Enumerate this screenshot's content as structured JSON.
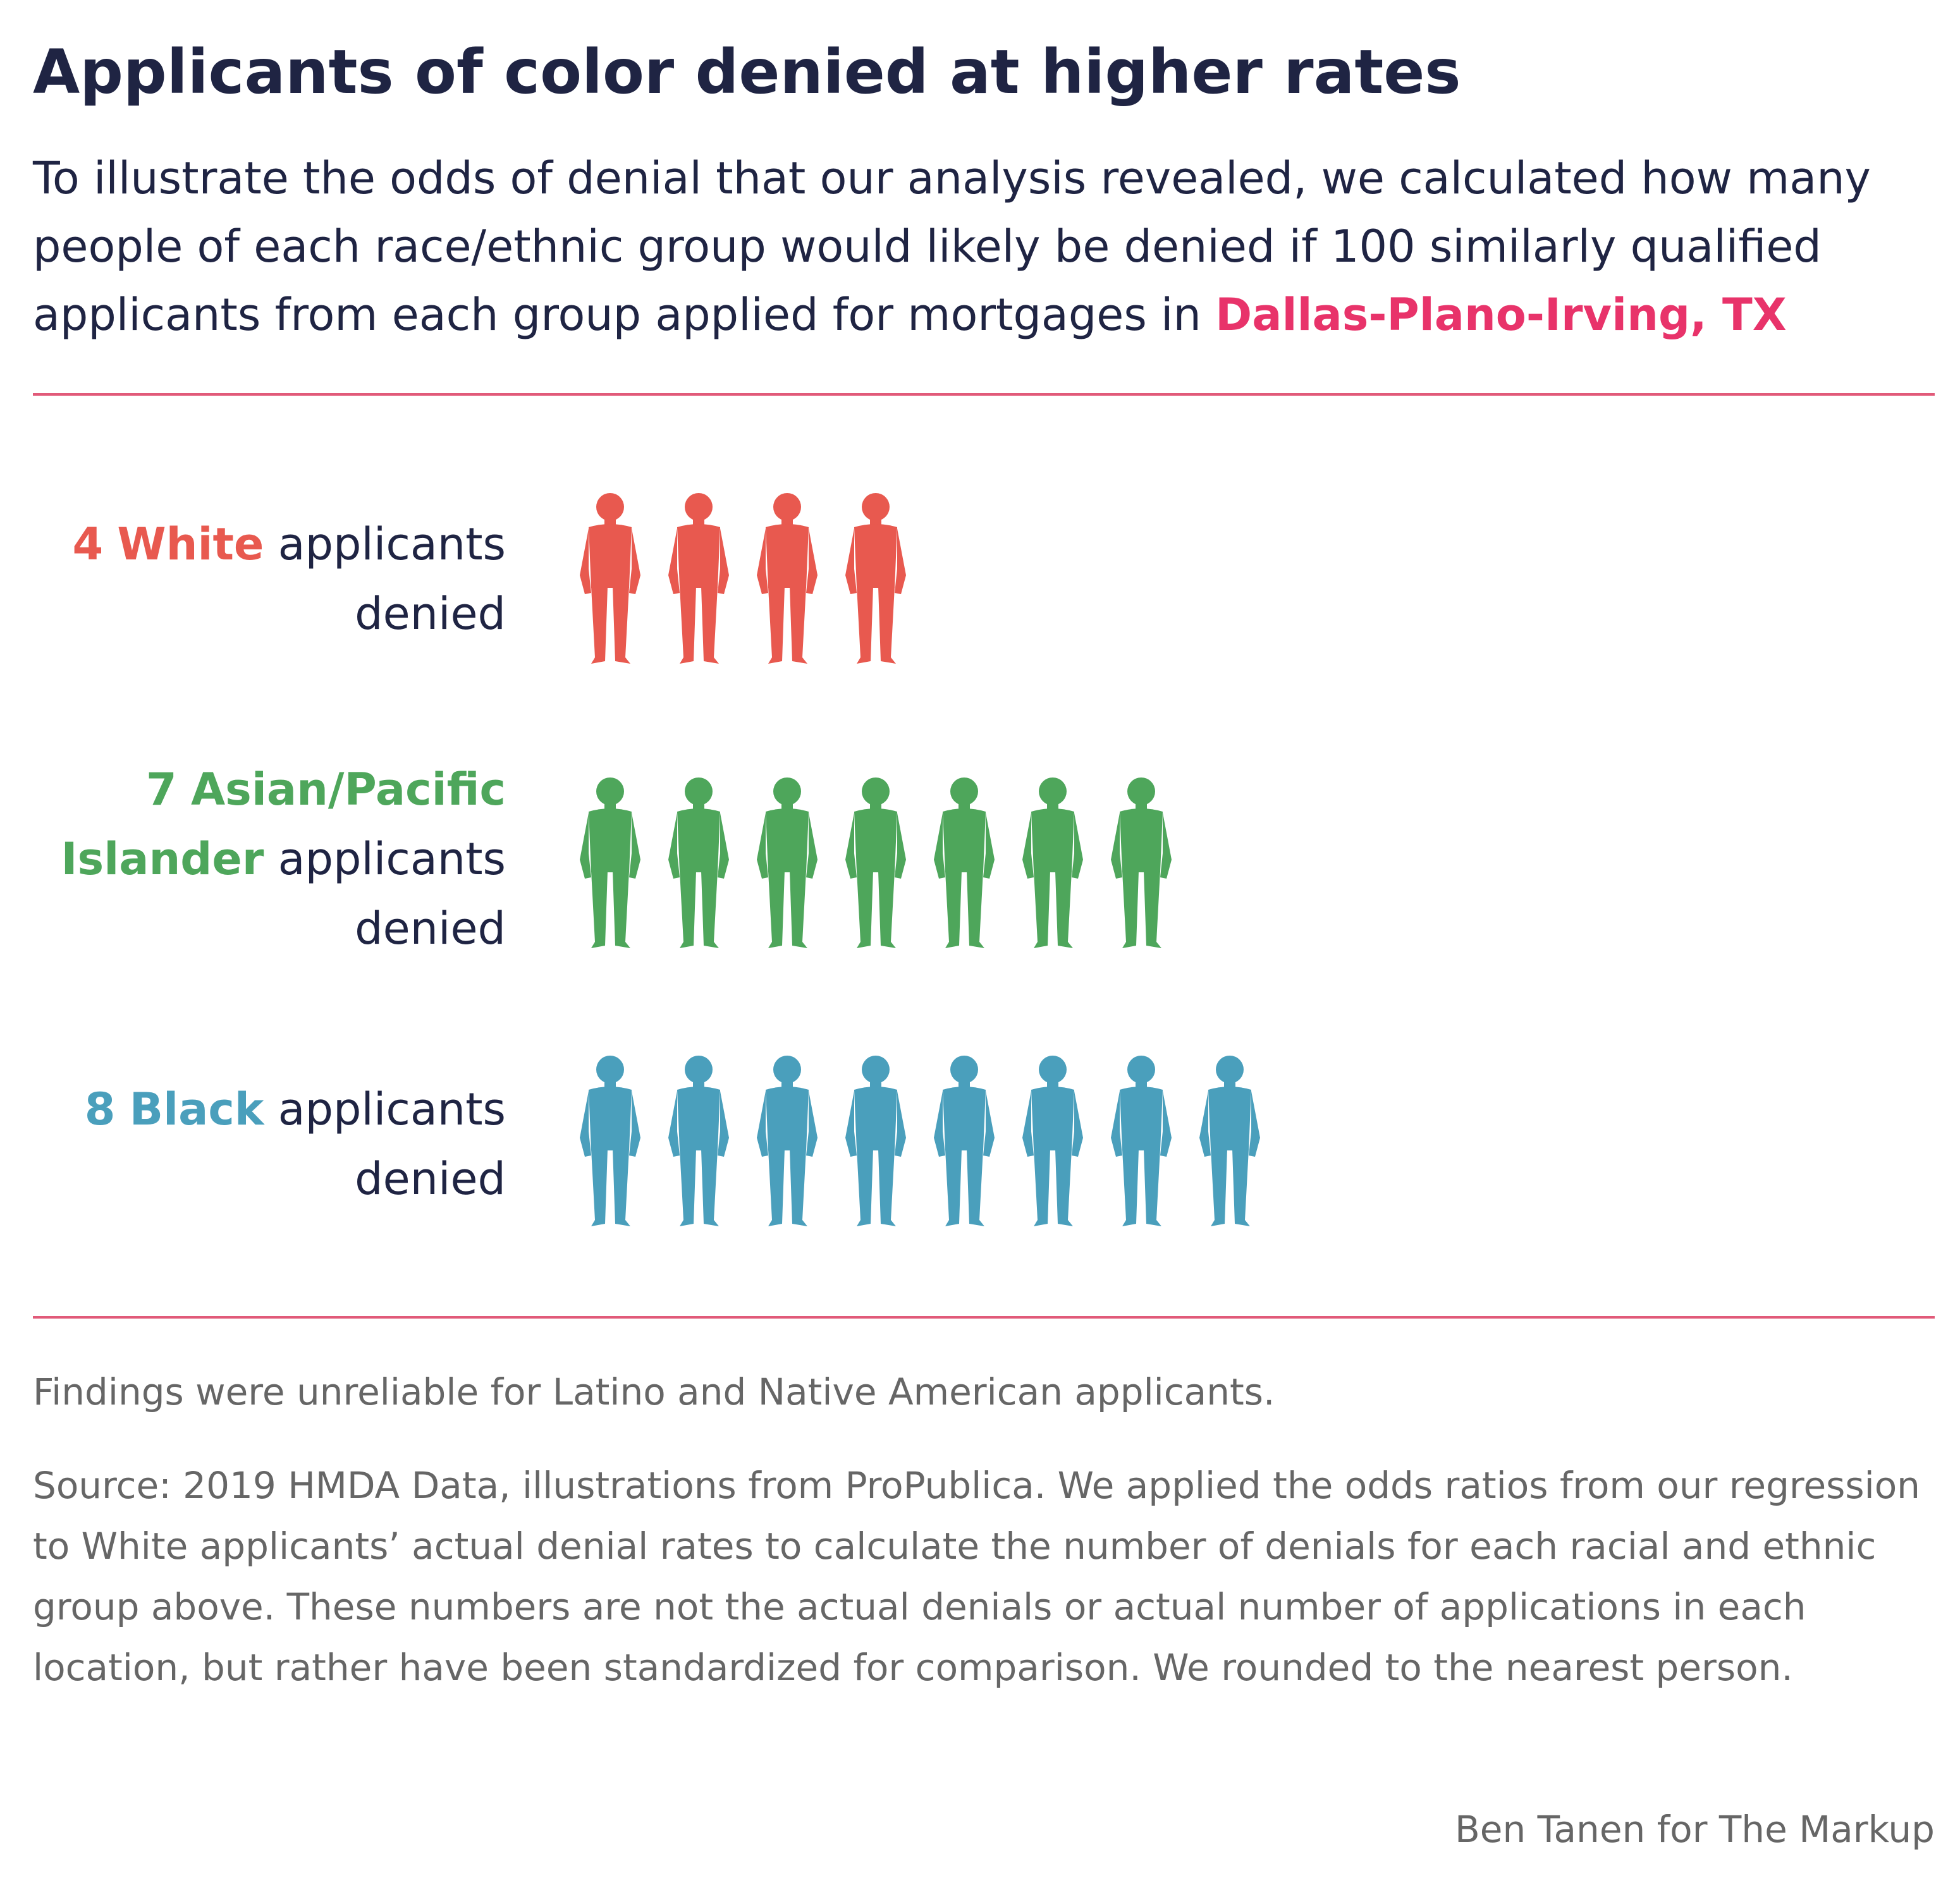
{
  "header": {
    "title": "Applicants of color denied at higher rates",
    "subtitle_text": "To illustrate the odds of denial that our analysis revealed, we calculated how many people of each race/ethnic group would likely be denied if 100 similarly qualified applicants from each group applied for mortgages in",
    "location": "Dallas-Plano-Irving, TX",
    "location_color": "#e8336a"
  },
  "chart_data": {
    "type": "bar",
    "title": "Applicants of color denied at higher rates",
    "categories": [
      "White",
      "Asian/Pacific Islander",
      "Black"
    ],
    "values": [
      4,
      7,
      8
    ],
    "unit": "applicants denied per 100 similarly qualified applicants",
    "colors": [
      "#e8594f",
      "#4ea65b",
      "#4a9fbc"
    ],
    "labels": [
      {
        "count": "4",
        "group": "White",
        "suffix": "applicants",
        "line2": "denied"
      },
      {
        "count": "7",
        "group": "Asian/Pacific",
        "group2": "Islander",
        "suffix": "applicants",
        "line3": "denied"
      },
      {
        "count": "8",
        "group": "Black",
        "suffix": "applicants",
        "line2": "denied"
      }
    ],
    "legend": "none",
    "grid": false
  },
  "footer": {
    "note": "Findings were unreliable for Latino and Native American applicants.",
    "source": "Source: 2019 HMDA Data, illustrations from ProPublica. We applied the odds ratios from our regression to White applicants’ actual denial rates to calculate the number of denials for each racial and ethnic group above. These numbers are not the actual denials or actual number of applications in each location, but rather have been standardized for comparison. We rounded to the nearest person.",
    "credit": "Ben Tanen for The Markup"
  },
  "colors": {
    "text": "#1f2443",
    "rule": "#e15a79",
    "muted": "#666666"
  },
  "icons": [
    "person-silhouette-icon"
  ]
}
